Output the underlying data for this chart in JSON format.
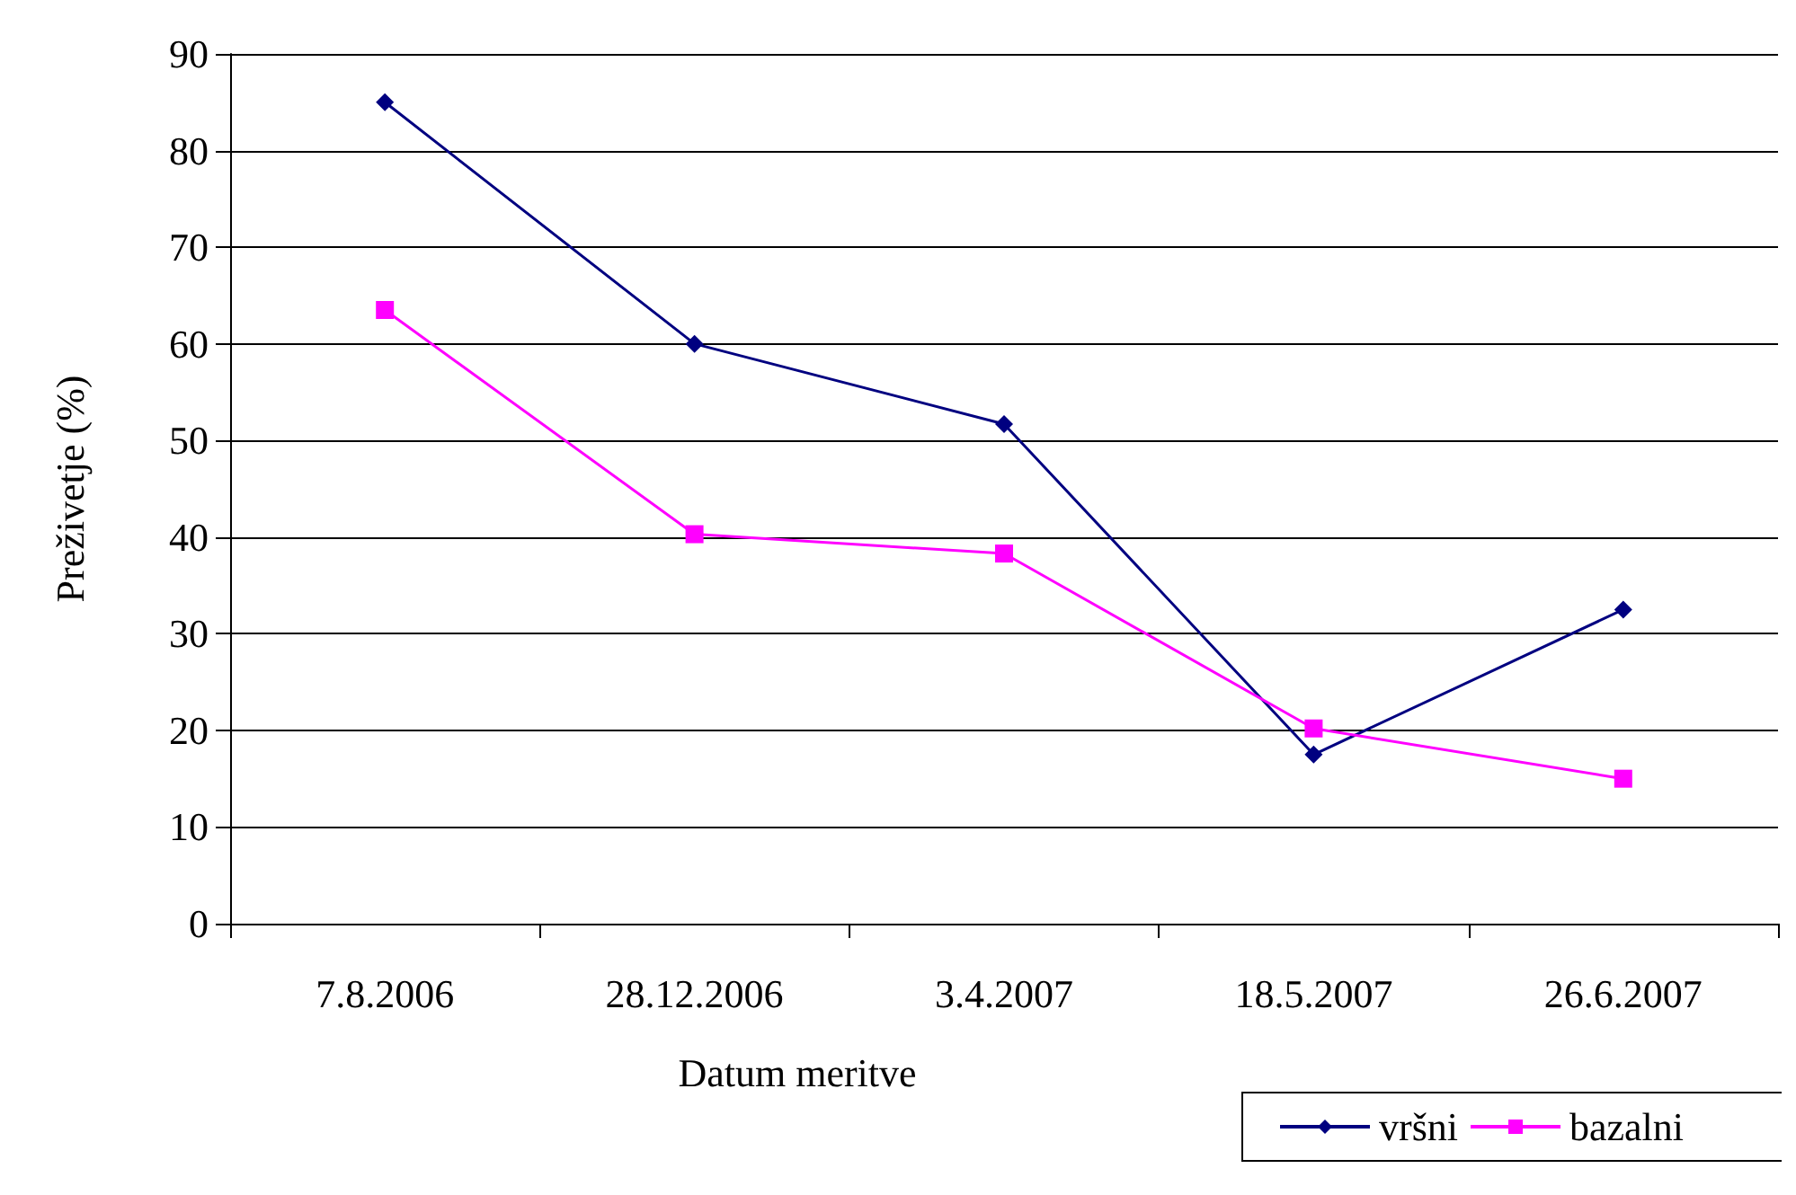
{
  "chart_data": {
    "type": "line",
    "xlabel": "Datum meritve",
    "ylabel": "Preživetje (%)",
    "categories": [
      "7.8.2006",
      "28.12.2006",
      "3.4.2007",
      "18.5.2007",
      "26.6.2007"
    ],
    "series": [
      {
        "name": "vršni",
        "color": "#000080",
        "marker": "diamond",
        "values": [
          85,
          60,
          51.7,
          17.5,
          32.5
        ]
      },
      {
        "name": "bazalni",
        "color": "#ff00ff",
        "marker": "square",
        "values": [
          63.5,
          40.3,
          38.3,
          20.2,
          15
        ]
      }
    ],
    "ylim": [
      0,
      90
    ],
    "yticks": [
      0,
      10,
      20,
      30,
      40,
      50,
      60,
      70,
      80,
      90
    ],
    "grid": "y",
    "legend": "bottom right"
  }
}
